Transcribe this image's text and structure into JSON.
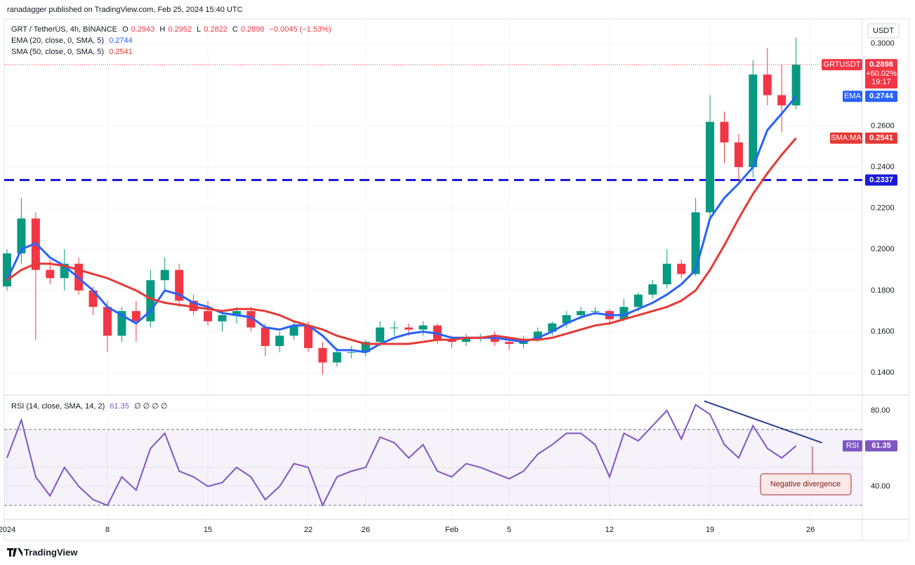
{
  "chart_data": {
    "type": "candlestick",
    "publisher": "ranadagger published on TradingView.com, Feb 25, 2024 15:40 UTC",
    "title": "GRT / TetherUS, 4h, BINANCE",
    "ohlc": [
      {
        "key": "O",
        "value": 0.2943
      },
      {
        "key": "H",
        "value": 0.2952
      },
      {
        "key": "L",
        "value": 0.2822
      },
      {
        "key": "C",
        "value": 0.2898
      }
    ],
    "change": "−0.0045 (−1.53%)",
    "currency": "USDT",
    "symbol_tag": "GRTUSDT",
    "change_pct": "+60.02%",
    "countdown": "19:17",
    "categories": [
      "2024",
      null,
      null,
      null,
      null,
      null,
      null,
      "8",
      null,
      null,
      null,
      null,
      null,
      null,
      "15",
      null,
      null,
      null,
      null,
      null,
      null,
      "22",
      null,
      null,
      null,
      "26",
      null,
      null,
      null,
      null,
      null,
      "Feb",
      null,
      null,
      null,
      "5",
      null,
      null,
      null,
      null,
      null,
      null,
      "12",
      null,
      null,
      null,
      null,
      null,
      null,
      "19",
      null,
      null,
      null,
      null,
      null,
      null,
      "26"
    ],
    "open": [
      0.182,
      0.198,
      0.215,
      0.19,
      0.186,
      0.193,
      0.18,
      0.172,
      0.158,
      0.17,
      0.165,
      0.185,
      0.19,
      0.175,
      0.17,
      0.165,
      0.168,
      0.17,
      0.162,
      0.153,
      0.158,
      0.163,
      0.152,
      0.145,
      0.15,
      0.15,
      0.155,
      0.162,
      0.162,
      0.161,
      0.163,
      0.156,
      0.155,
      0.157,
      0.157,
      0.155,
      0.154,
      0.156,
      0.16,
      0.164,
      0.168,
      0.17,
      0.17,
      0.166,
      0.172,
      0.178,
      0.183,
      0.193,
      0.188,
      0.218,
      0.262,
      0.252,
      0.24,
      0.285,
      0.275,
      0.27,
      null
    ],
    "high": [
      0.2,
      0.225,
      0.218,
      0.195,
      0.2,
      0.196,
      0.182,
      0.175,
      0.172,
      0.175,
      0.19,
      0.196,
      0.193,
      0.178,
      0.175,
      0.17,
      0.172,
      0.172,
      0.164,
      0.16,
      0.165,
      0.165,
      0.155,
      0.152,
      0.153,
      0.156,
      0.165,
      0.165,
      0.164,
      0.165,
      0.164,
      0.158,
      0.159,
      0.159,
      0.16,
      0.157,
      0.158,
      0.162,
      0.165,
      0.17,
      0.172,
      0.172,
      0.171,
      0.176,
      0.179,
      0.185,
      0.2,
      0.195,
      0.225,
      0.275,
      0.267,
      0.256,
      0.292,
      0.298,
      0.29,
      0.303,
      null
    ],
    "low": [
      0.18,
      0.193,
      0.156,
      0.183,
      0.18,
      0.178,
      0.168,
      0.15,
      0.155,
      0.155,
      0.162,
      0.18,
      0.172,
      0.168,
      0.163,
      0.16,
      0.164,
      0.16,
      0.148,
      0.15,
      0.156,
      0.15,
      0.139,
      0.143,
      0.147,
      0.148,
      0.153,
      0.158,
      0.158,
      0.158,
      0.154,
      0.152,
      0.153,
      0.155,
      0.153,
      0.151,
      0.152,
      0.155,
      0.158,
      0.162,
      0.166,
      0.168,
      0.164,
      0.165,
      0.17,
      0.176,
      0.181,
      0.186,
      0.187,
      0.215,
      0.242,
      0.232,
      0.235,
      0.27,
      0.257,
      0.268,
      null
    ],
    "close": [
      0.198,
      0.215,
      0.19,
      0.186,
      0.193,
      0.18,
      0.172,
      0.158,
      0.17,
      0.165,
      0.185,
      0.19,
      0.175,
      0.17,
      0.165,
      0.168,
      0.17,
      0.162,
      0.153,
      0.158,
      0.163,
      0.152,
      0.145,
      0.15,
      0.15,
      0.155,
      0.162,
      0.162,
      0.161,
      0.163,
      0.156,
      0.155,
      0.157,
      0.157,
      0.155,
      0.154,
      0.156,
      0.16,
      0.164,
      0.168,
      0.17,
      0.17,
      0.166,
      0.172,
      0.178,
      0.183,
      0.193,
      0.188,
      0.218,
      0.262,
      0.252,
      0.24,
      0.285,
      0.275,
      0.27,
      0.2898,
      null
    ],
    "up_color": "#089981",
    "down_color": "#f23645",
    "series": [
      {
        "name": "EMA (20, close, 0, SMA, 5)",
        "tag": "EMA",
        "color": "#2962ff",
        "values": [
          0.185,
          0.2,
          0.203,
          0.196,
          0.192,
          0.186,
          0.18,
          0.172,
          0.168,
          0.164,
          0.17,
          0.18,
          0.178,
          0.174,
          0.172,
          0.169,
          0.168,
          0.167,
          0.162,
          0.161,
          0.163,
          0.163,
          0.158,
          0.151,
          0.151,
          0.15,
          0.154,
          0.157,
          0.159,
          0.16,
          0.159,
          0.157,
          0.157,
          0.157,
          0.157,
          0.156,
          0.155,
          0.157,
          0.16,
          0.164,
          0.167,
          0.169,
          0.168,
          0.168,
          0.171,
          0.174,
          0.178,
          0.183,
          0.19,
          0.215,
          0.225,
          0.232,
          0.24,
          0.258,
          0.266,
          0.2744,
          null
        ]
      },
      {
        "name": "SMA (50, close, 0, SMA, 5)",
        "tag": "SMA:MA",
        "color": "#e53935",
        "values": [
          0.185,
          0.19,
          0.193,
          0.193,
          0.192,
          0.19,
          0.188,
          0.186,
          0.183,
          0.18,
          0.176,
          0.174,
          0.173,
          0.172,
          0.171,
          0.17,
          0.171,
          0.171,
          0.17,
          0.168,
          0.165,
          0.163,
          0.161,
          0.158,
          0.156,
          0.154,
          0.154,
          0.154,
          0.154,
          0.155,
          0.156,
          0.156,
          0.157,
          0.157,
          0.158,
          0.157,
          0.156,
          0.156,
          0.157,
          0.159,
          0.161,
          0.163,
          0.164,
          0.166,
          0.168,
          0.17,
          0.172,
          0.175,
          0.18,
          0.19,
          0.202,
          0.215,
          0.227,
          0.237,
          0.246,
          0.2541,
          null
        ]
      }
    ],
    "level": {
      "value": 0.2337,
      "color": "#1a1ad9"
    },
    "ylim": [
      0.1291,
      0.3117
    ],
    "yticks": [
      {
        "value": 0.14,
        "label": "0.1400"
      },
      {
        "value": 0.16,
        "label": "0.1600"
      },
      {
        "value": 0.18,
        "label": "0.1800"
      },
      {
        "value": 0.2,
        "label": "0.2000"
      },
      {
        "value": 0.22,
        "label": "0.2200"
      },
      {
        "value": 0.24,
        "label": "0.2400"
      },
      {
        "value": 0.26,
        "label": "0.2600"
      },
      {
        "value": 0.3,
        "label": "0.3000"
      }
    ],
    "grid": true,
    "rsi": {
      "name": "RSI (14, close, SMA, 14, 2)",
      "tag": "RSI",
      "nulls": "∅ ∅ ∅ ∅",
      "color": "#7e57c2",
      "values": [
        55,
        75,
        45,
        35,
        50,
        40,
        33,
        30,
        45,
        38,
        60,
        68,
        48,
        45,
        40,
        42,
        50,
        45,
        33,
        40,
        52,
        50,
        30,
        45,
        48,
        50,
        66,
        63,
        55,
        62,
        48,
        45,
        52,
        50,
        47,
        44,
        48,
        57,
        62,
        68,
        68,
        62,
        45,
        68,
        64,
        72,
        80,
        65,
        83,
        78,
        62,
        55,
        72,
        60,
        55,
        61.35,
        null
      ],
      "ylim": [
        22.6,
        88.1
      ],
      "yticks": [
        {
          "value": 80,
          "label": "80.00"
        },
        {
          "value": 40,
          "label": "40.00"
        }
      ],
      "bands": [
        70,
        30
      ],
      "mid": 50,
      "trendline": [
        85,
        63
      ],
      "trend_color": "#2a3f8f",
      "annotation": "Negative divergence"
    },
    "watermark": "TradingView"
  }
}
